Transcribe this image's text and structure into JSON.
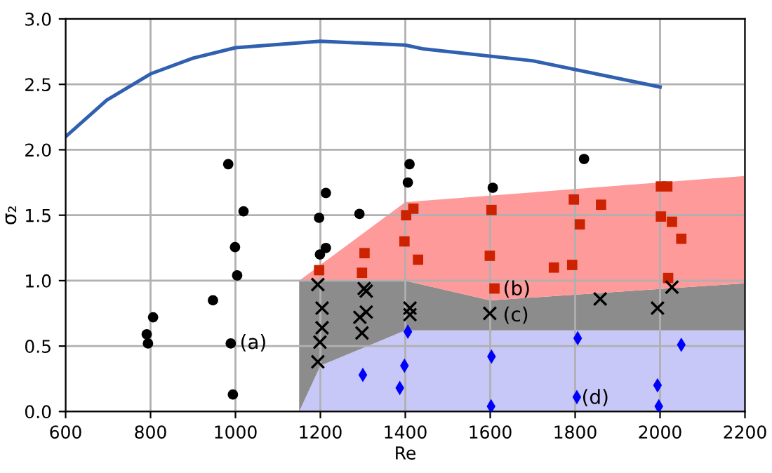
{
  "chart_data": {
    "type": "scatter",
    "xlabel": "Re",
    "ylabel": "σ₂",
    "xlim": [
      600,
      2200
    ],
    "ylim": [
      0,
      3.0
    ],
    "xticks": [
      600,
      800,
      1000,
      1200,
      1400,
      1600,
      1800,
      2000,
      2200
    ],
    "yticks": [
      {
        "value": 0,
        "label": "0.0"
      },
      0.5,
      {
        "value": 1,
        "label": "1.0"
      },
      1.5,
      {
        "value": 2,
        "label": "2.0"
      },
      2.5,
      {
        "value": 3,
        "label": "3.0"
      }
    ],
    "grid": true,
    "stacked": true,
    "series": [
      {
        "type": "area",
        "color": "#c8c8f8",
        "x": [
          1150,
          1200,
          1400,
          1600,
          2200
        ],
        "values": [
          0,
          0.35,
          0.62,
          0.62,
          0.62
        ]
      },
      {
        "type": "area",
        "color": "#8c8c8c",
        "x": [
          1150,
          1200,
          1400,
          1600,
          2200
        ],
        "values": [
          1.0,
          0.65,
          0.38,
          0.23,
          0.36
        ]
      },
      {
        "type": "area",
        "color": "#ff9a9a",
        "x": [
          1150,
          1200,
          1400,
          1600,
          2200
        ],
        "values": [
          0,
          0.12,
          0.6,
          0.8,
          0.82
        ]
      },
      {
        "type": "line",
        "color": "#3060b0",
        "marker": "none",
        "x": [
          600,
          697,
          800,
          900,
          1000,
          1200,
          1400,
          1444,
          1700,
          2000
        ],
        "values": [
          2.1,
          2.38,
          2.58,
          2.7,
          2.78,
          2.83,
          2.8,
          2.77,
          2.68,
          2.48
        ]
      },
      {
        "color": "#000000",
        "marker": "circle",
        "x": [
          983,
          1019,
          999,
          1004,
          947,
          806,
          791,
          794,
          989,
          994,
          1213,
          1197,
          1213,
          1199,
          1292,
          1410,
          1406,
          1606,
          1821
        ],
        "values": [
          1.89,
          1.53,
          1.256,
          1.04,
          0.85,
          0.72,
          0.59,
          0.52,
          0.52,
          0.13,
          1.67,
          1.48,
          1.25,
          1.2,
          1.51,
          1.89,
          1.75,
          1.71,
          1.93
        ]
      },
      {
        "color": "#cc2200",
        "marker": "square",
        "x": [
          1197,
          1304,
          1298,
          1402,
          1419,
          1398,
          1430,
          1603,
          1599,
          1610,
          1797,
          1861,
          1811,
          1750,
          1793,
          2002,
          2017,
          2002,
          2028,
          2050,
          2019
        ],
        "values": [
          1.08,
          1.21,
          1.06,
          1.5,
          1.55,
          1.3,
          1.16,
          1.54,
          1.19,
          0.94,
          1.62,
          1.58,
          1.43,
          1.1,
          1.12,
          1.72,
          1.72,
          1.49,
          1.45,
          1.32,
          1.02
        ]
      },
      {
        "color": "#000000",
        "marker": "cross",
        "x": [
          1194,
          1204,
          1204,
          1199,
          1194,
          1303,
          1308,
          1308,
          1293,
          1298,
          1411,
          1411,
          1599,
          1859,
          1994,
          2028
        ],
        "values": [
          0.97,
          0.79,
          0.64,
          0.53,
          0.38,
          0.94,
          0.92,
          0.76,
          0.72,
          0.6,
          0.79,
          0.74,
          0.75,
          0.86,
          0.79,
          0.95
        ]
      },
      {
        "color": "#0000ff",
        "marker": "diamond",
        "x": [
          1300,
          1406,
          1398,
          1387,
          1603,
          1602,
          1806,
          2050,
          1804,
          1994,
          1997
        ],
        "values": [
          0.28,
          0.61,
          0.35,
          0.18,
          0.42,
          0.04,
          0.56,
          0.51,
          0.11,
          0.2,
          0.04
        ]
      }
    ],
    "annotations": [
      {
        "text": "(a)",
        "x": 1010,
        "y": 0.52
      },
      {
        "text": "(b)",
        "x": 1630,
        "y": 0.93
      },
      {
        "text": "(c)",
        "x": 1630,
        "y": 0.73
      },
      {
        "text": "(d)",
        "x": 1815,
        "y": 0.1
      }
    ]
  }
}
